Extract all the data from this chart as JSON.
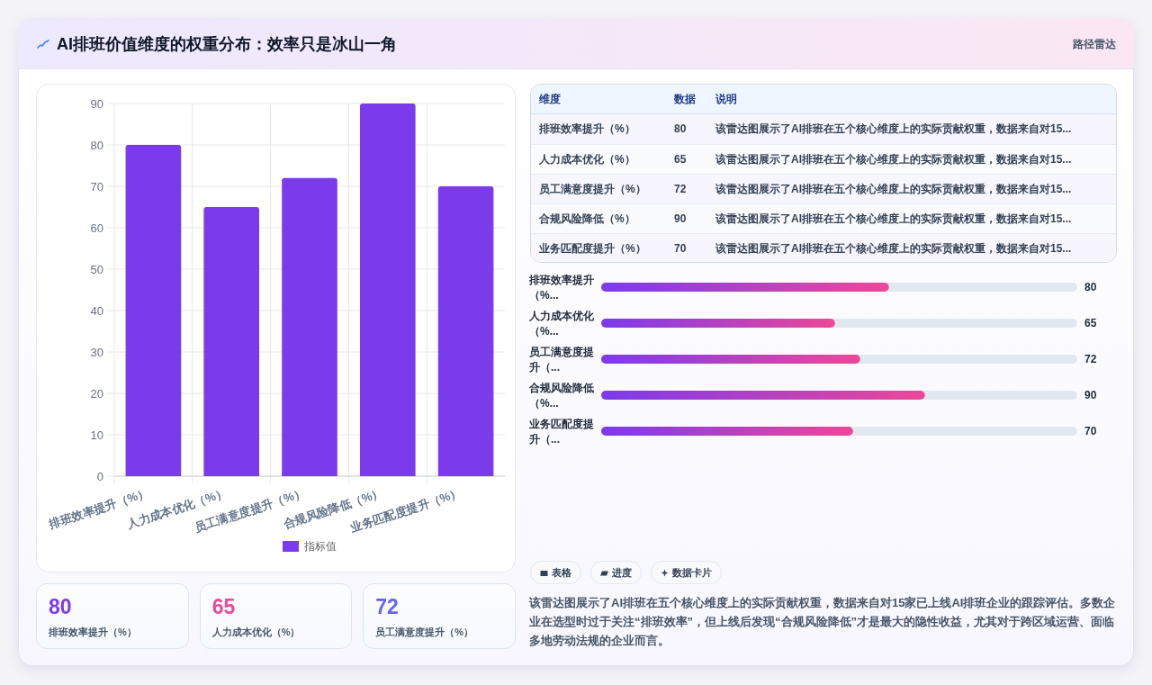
{
  "chart_data": [
    {
      "type": "bar",
      "title": "AI排班价值维度的权重分布：效率只是冰山一角",
      "annotations": [
        "路径雷达"
      ],
      "categories": [
        "排班效率提升（%）",
        "人力成本优化（%）",
        "员工满意度提升（%）",
        "合规风险降低（%）",
        "业务匹配度提升（%）"
      ],
      "series": [
        {
          "name": "指标值",
          "color": "#7c3aed",
          "values": [
            80,
            65,
            72,
            90,
            70
          ]
        }
      ],
      "ylim": [
        0,
        90
      ],
      "yticks": [
        0,
        10,
        20,
        30,
        40,
        50,
        60,
        70,
        80,
        90
      ],
      "grid": true,
      "legend": "bottom"
    },
    {
      "type": "other",
      "categories": [
        "排班效率提升（%）",
        "人力成本优化（%）",
        "员工满意度提升（%）",
        "合规风险降低（%）",
        "业务匹配度提升（%）"
      ],
      "values": [
        80,
        65,
        72,
        90,
        70
      ],
      "data_labels": true,
      "annotations": [
        "维度",
        "数据",
        "说明",
        "该雷达图展示了AI排班在五个核心维度上的实际贡献权重，数据来自对15...",
        "该雷达图展示了AI排班在五个核心维度上的实际贡献权重，数据来自对15...",
        "该雷达图展示了AI排班在五个核心维度上的实际贡献权重，数据来自对15...",
        "该雷达图展示了AI排班在五个核心维度上的实际贡献权重，数据来自对15...",
        "该雷达图展示了AI排班在五个核心维度上的实际贡献权重，数据来自对15..."
      ]
    },
    {
      "type": "bar",
      "orientation": "horizontal",
      "categories": [
        "排班效率提升（%...",
        "人力成本优化（%...",
        "员工满意度提升（...",
        "合规风险降低（%...",
        "业务匹配度提升（..."
      ],
      "values": [
        80,
        65,
        72,
        90,
        70
      ],
      "color": "#7c3aed",
      "data_labels": true
    },
    {
      "type": "other",
      "categories": [
        "排班效率提升（%）",
        "人力成本优化（%）",
        "员工满意度提升（%）"
      ],
      "values": [
        80,
        65,
        72
      ],
      "data_labels": true
    },
    {
      "type": "other",
      "annotations": [
        "表格",
        "进度",
        "数据卡片",
        "该雷达图展示了AI排班在五个核心维度上的实际贡献权重，数据来自对15家已上线AI排班企业的跟踪评估。多数企业在选型时过于关注“排班效率”，但上线后发现“合规风险降低”才是最大的隐性收益，尤其对于跨区域运营、面临多地劳动法规的企业而言。"
      ]
    }
  ]
}
